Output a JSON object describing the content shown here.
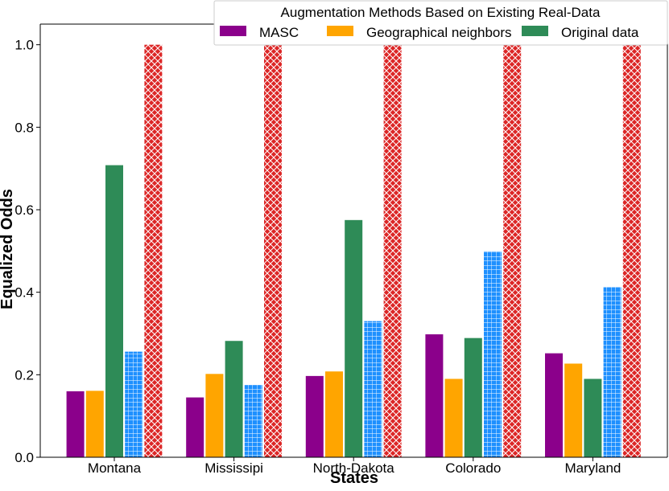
{
  "chart_data": {
    "type": "bar",
    "xlabel": "States",
    "ylabel": "Equalized Odds",
    "ylim": [
      0,
      1.05
    ],
    "yticks": [
      0.0,
      0.2,
      0.4,
      0.6,
      0.8,
      1.0
    ],
    "categories": [
      "Montana",
      "Mississipi",
      "North-Dakota",
      "Colorado",
      "Maryland"
    ],
    "legend": {
      "title": "Augmentation Methods Based on Existing Real-Data",
      "placement": "top-right"
    },
    "series": [
      {
        "name": "MASC",
        "color": "#8b008b",
        "pattern": "solid",
        "values": [
          0.16,
          0.145,
          0.197,
          0.298,
          0.252
        ]
      },
      {
        "name": "Geographical neighbors",
        "color": "#ffa500",
        "pattern": "solid",
        "values": [
          0.161,
          0.202,
          0.208,
          0.19,
          0.227
        ]
      },
      {
        "name": "Original data",
        "color": "#2e8b57",
        "pattern": "solid",
        "values": [
          0.708,
          0.282,
          0.575,
          0.289,
          0.19
        ]
      },
      {
        "color": "#1e90ff",
        "pattern": "grid",
        "values": [
          0.256,
          0.175,
          0.33,
          0.499,
          0.413
        ]
      },
      {
        "color": "#dc2626",
        "pattern": "crosshatch",
        "values": [
          1.0,
          1.0,
          1.0,
          1.0,
          1.0
        ]
      }
    ]
  }
}
